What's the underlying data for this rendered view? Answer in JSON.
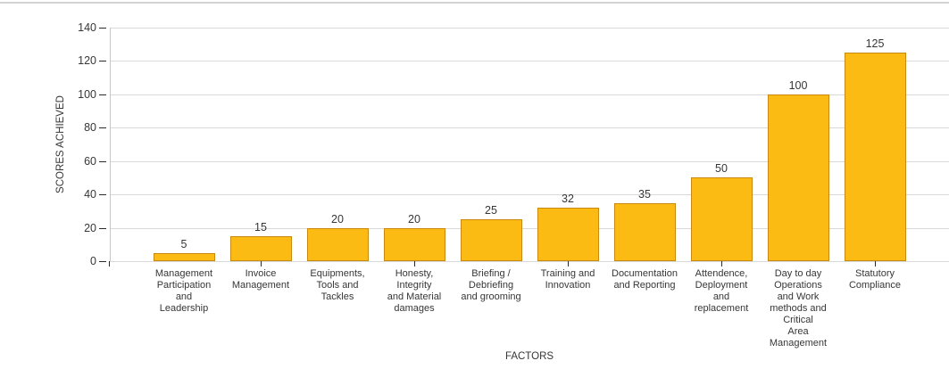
{
  "chart_data": {
    "type": "bar",
    "title": "",
    "xlabel": "FACTORS",
    "ylabel": "SCORES ACHIEVED",
    "ylim": [
      0,
      140
    ],
    "ytick_step": 20,
    "grid": "horizontal",
    "legend": "none",
    "bar_color": "#FCBB13",
    "bar_border_color": "#C9880E",
    "grid_color": "#D9D9D9",
    "axis_color": "#C6C6C6",
    "tick_color": "#2B2B2B",
    "text_color": "#363636",
    "categories": [
      "Management Participation and Leadership",
      "Invoice Management",
      "Equipments, Tools and Tackles",
      "Honesty, Integrity and Material damages",
      "Briefing / Debriefing and grooming",
      "Training and Innovation",
      "Documentation and Reporting",
      "Attendence, Deployment and replacement",
      "Day to day Operations and Work methods and Critical Area Management",
      "Statutory Compliance"
    ],
    "category_label_lines": [
      [
        "Management",
        "Participation",
        "and",
        "Leadership"
      ],
      [
        "Invoice",
        "Management"
      ],
      [
        "Equipments,",
        "Tools and",
        "Tackles"
      ],
      [
        "Honesty,",
        "Integrity",
        "and Material",
        "damages"
      ],
      [
        "Briefing /",
        "Debriefing",
        "and grooming"
      ],
      [
        "Training and",
        "Innovation"
      ],
      [
        "Documentation",
        "and Reporting"
      ],
      [
        "Attendence,",
        "Deployment",
        "and",
        "replacement"
      ],
      [
        "Day to day",
        "Operations",
        "and Work",
        "methods and",
        "Critical",
        "Area",
        "Management"
      ],
      [
        "Statutory",
        "Compliance"
      ]
    ],
    "values": [
      5,
      15,
      20,
      20,
      25,
      32,
      35,
      50,
      100,
      125
    ]
  },
  "page": {
    "top_border_color": "#D2D2D2"
  }
}
